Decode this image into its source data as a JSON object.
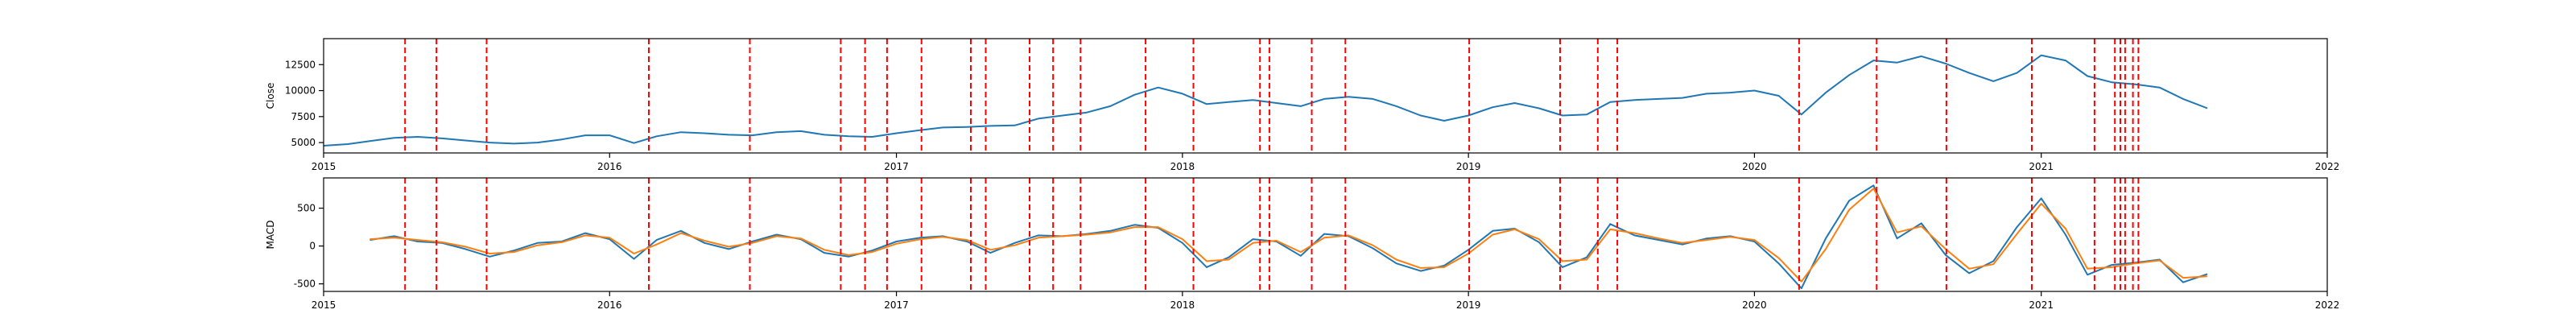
{
  "chart_data": [
    {
      "type": "line",
      "ylabel": "Close",
      "xlim": [
        "2015-01-01",
        "2022-01-01"
      ],
      "ylim": [
        4000,
        15000
      ],
      "x_ticks": [
        "2015",
        "2016",
        "2017",
        "2018",
        "2019",
        "2020",
        "2021",
        "2022"
      ],
      "y_ticks": [
        5000,
        7500,
        10000,
        12500
      ],
      "grid": false,
      "series": [
        {
          "color": "#1f77b4",
          "points": [
            [
              "2015-01-01",
              4700
            ],
            [
              "2015-02-01",
              4850
            ],
            [
              "2015-03-01",
              5150
            ],
            [
              "2015-04-01",
              5450
            ],
            [
              "2015-05-01",
              5550
            ],
            [
              "2015-06-01",
              5400
            ],
            [
              "2015-07-01",
              5200
            ],
            [
              "2015-08-01",
              5000
            ],
            [
              "2015-09-01",
              4900
            ],
            [
              "2015-10-01",
              5000
            ],
            [
              "2015-11-01",
              5300
            ],
            [
              "2015-12-01",
              5700
            ],
            [
              "2016-01-01",
              5700
            ],
            [
              "2016-02-01",
              4950
            ],
            [
              "2016-03-01",
              5600
            ],
            [
              "2016-04-01",
              6000
            ],
            [
              "2016-05-01",
              5900
            ],
            [
              "2016-06-01",
              5750
            ],
            [
              "2016-07-01",
              5700
            ],
            [
              "2016-08-01",
              6000
            ],
            [
              "2016-09-01",
              6100
            ],
            [
              "2016-10-01",
              5750
            ],
            [
              "2016-11-01",
              5600
            ],
            [
              "2016-12-01",
              5550
            ],
            [
              "2017-01-01",
              5900
            ],
            [
              "2017-02-01",
              6200
            ],
            [
              "2017-03-01",
              6450
            ],
            [
              "2017-04-01",
              6500
            ],
            [
              "2017-05-01",
              6600
            ],
            [
              "2017-06-01",
              6650
            ],
            [
              "2017-07-01",
              7300
            ],
            [
              "2017-08-01",
              7600
            ],
            [
              "2017-09-01",
              7900
            ],
            [
              "2017-10-01",
              8500
            ],
            [
              "2017-11-01",
              9600
            ],
            [
              "2017-12-01",
              10300
            ],
            [
              "2018-01-01",
              9700
            ],
            [
              "2018-02-01",
              8700
            ],
            [
              "2018-03-01",
              8900
            ],
            [
              "2018-04-01",
              9100
            ],
            [
              "2018-05-01",
              8800
            ],
            [
              "2018-06-01",
              8500
            ],
            [
              "2018-07-01",
              9200
            ],
            [
              "2018-08-01",
              9400
            ],
            [
              "2018-09-01",
              9200
            ],
            [
              "2018-10-01",
              8500
            ],
            [
              "2018-11-01",
              7600
            ],
            [
              "2018-12-01",
              7100
            ],
            [
              "2019-01-01",
              7600
            ],
            [
              "2019-02-01",
              8400
            ],
            [
              "2019-03-01",
              8800
            ],
            [
              "2019-04-01",
              8300
            ],
            [
              "2019-05-01",
              7600
            ],
            [
              "2019-06-01",
              7700
            ],
            [
              "2019-07-01",
              8900
            ],
            [
              "2019-08-01",
              9100
            ],
            [
              "2019-09-01",
              9200
            ],
            [
              "2019-10-01",
              9300
            ],
            [
              "2019-11-01",
              9700
            ],
            [
              "2019-12-01",
              9800
            ],
            [
              "2020-01-01",
              10000
            ],
            [
              "2020-02-01",
              9500
            ],
            [
              "2020-03-01",
              7700
            ],
            [
              "2020-04-01",
              9800
            ],
            [
              "2020-05-01",
              11500
            ],
            [
              "2020-06-01",
              12900
            ],
            [
              "2020-07-01",
              12700
            ],
            [
              "2020-08-01",
              13300
            ],
            [
              "2020-09-01",
              12600
            ],
            [
              "2020-10-01",
              11700
            ],
            [
              "2020-11-01",
              10900
            ],
            [
              "2020-12-01",
              11700
            ],
            [
              "2021-01-01",
              13400
            ],
            [
              "2021-02-01",
              12900
            ],
            [
              "2021-03-01",
              11400
            ],
            [
              "2021-04-01",
              10800
            ],
            [
              "2021-05-01",
              10600
            ],
            [
              "2021-06-01",
              10300
            ],
            [
              "2021-07-01",
              9200
            ],
            [
              "2021-08-01",
              8300
            ]
          ]
        }
      ]
    },
    {
      "type": "line",
      "ylabel": "MACD",
      "xlim": [
        "2015-01-01",
        "2022-01-01"
      ],
      "ylim": [
        -600,
        900
      ],
      "x_ticks": [
        "2015",
        "2016",
        "2017",
        "2018",
        "2019",
        "2020",
        "2021",
        "2022"
      ],
      "y_ticks": [
        -500,
        0,
        500
      ],
      "grid": false,
      "series": [
        {
          "color": "#1f77b4",
          "points": [
            [
              "2015-03-01",
              80
            ],
            [
              "2015-04-01",
              130
            ],
            [
              "2015-05-01",
              60
            ],
            [
              "2015-06-01",
              40
            ],
            [
              "2015-07-01",
              -40
            ],
            [
              "2015-08-01",
              -140
            ],
            [
              "2015-09-01",
              -60
            ],
            [
              "2015-10-01",
              40
            ],
            [
              "2015-11-01",
              60
            ],
            [
              "2015-12-01",
              170
            ],
            [
              "2016-01-01",
              90
            ],
            [
              "2016-02-01",
              -170
            ],
            [
              "2016-03-01",
              80
            ],
            [
              "2016-04-01",
              200
            ],
            [
              "2016-05-01",
              40
            ],
            [
              "2016-06-01",
              -40
            ],
            [
              "2016-07-01",
              60
            ],
            [
              "2016-08-01",
              150
            ],
            [
              "2016-09-01",
              90
            ],
            [
              "2016-10-01",
              -90
            ],
            [
              "2016-11-01",
              -140
            ],
            [
              "2016-12-01",
              -60
            ],
            [
              "2017-01-01",
              60
            ],
            [
              "2017-02-01",
              110
            ],
            [
              "2017-03-01",
              130
            ],
            [
              "2017-04-01",
              60
            ],
            [
              "2017-05-01",
              -90
            ],
            [
              "2017-06-01",
              40
            ],
            [
              "2017-07-01",
              140
            ],
            [
              "2017-08-01",
              130
            ],
            [
              "2017-09-01",
              160
            ],
            [
              "2017-10-01",
              200
            ],
            [
              "2017-11-01",
              280
            ],
            [
              "2017-12-01",
              240
            ],
            [
              "2018-01-01",
              40
            ],
            [
              "2018-02-01",
              -280
            ],
            [
              "2018-03-01",
              -150
            ],
            [
              "2018-04-01",
              90
            ],
            [
              "2018-05-01",
              60
            ],
            [
              "2018-06-01",
              -130
            ],
            [
              "2018-07-01",
              160
            ],
            [
              "2018-08-01",
              130
            ],
            [
              "2018-09-01",
              -30
            ],
            [
              "2018-10-01",
              -230
            ],
            [
              "2018-11-01",
              -330
            ],
            [
              "2018-12-01",
              -260
            ],
            [
              "2019-01-01",
              -50
            ],
            [
              "2019-02-01",
              200
            ],
            [
              "2019-03-01",
              230
            ],
            [
              "2019-04-01",
              50
            ],
            [
              "2019-05-01",
              -280
            ],
            [
              "2019-06-01",
              -150
            ],
            [
              "2019-07-01",
              290
            ],
            [
              "2019-08-01",
              140
            ],
            [
              "2019-09-01",
              80
            ],
            [
              "2019-10-01",
              20
            ],
            [
              "2019-11-01",
              100
            ],
            [
              "2019-12-01",
              130
            ],
            [
              "2020-01-01",
              60
            ],
            [
              "2020-02-01",
              -230
            ],
            [
              "2020-03-01",
              -560
            ],
            [
              "2020-04-01",
              100
            ],
            [
              "2020-05-01",
              600
            ],
            [
              "2020-06-01",
              800
            ],
            [
              "2020-07-01",
              100
            ],
            [
              "2020-08-01",
              300
            ],
            [
              "2020-09-01",
              -120
            ],
            [
              "2020-10-01",
              -360
            ],
            [
              "2020-11-01",
              -200
            ],
            [
              "2020-12-01",
              250
            ],
            [
              "2021-01-01",
              630
            ],
            [
              "2021-02-01",
              150
            ],
            [
              "2021-03-01",
              -380
            ],
            [
              "2021-04-01",
              -250
            ],
            [
              "2021-05-01",
              -220
            ],
            [
              "2021-06-01",
              -180
            ],
            [
              "2021-07-01",
              -480
            ],
            [
              "2021-08-01",
              -370
            ]
          ]
        },
        {
          "color": "#ff7f0e",
          "points": [
            [
              "2015-03-01",
              90
            ],
            [
              "2015-04-01",
              110
            ],
            [
              "2015-05-01",
              80
            ],
            [
              "2015-06-01",
              50
            ],
            [
              "2015-07-01",
              -10
            ],
            [
              "2015-08-01",
              -100
            ],
            [
              "2015-09-01",
              -80
            ],
            [
              "2015-10-01",
              10
            ],
            [
              "2015-11-01",
              50
            ],
            [
              "2015-12-01",
              140
            ],
            [
              "2016-01-01",
              110
            ],
            [
              "2016-02-01",
              -100
            ],
            [
              "2016-03-01",
              20
            ],
            [
              "2016-04-01",
              170
            ],
            [
              "2016-05-01",
              70
            ],
            [
              "2016-06-01",
              -10
            ],
            [
              "2016-07-01",
              40
            ],
            [
              "2016-08-01",
              130
            ],
            [
              "2016-09-01",
              100
            ],
            [
              "2016-10-01",
              -50
            ],
            [
              "2016-11-01",
              -120
            ],
            [
              "2016-12-01",
              -80
            ],
            [
              "2017-01-01",
              30
            ],
            [
              "2017-02-01",
              90
            ],
            [
              "2017-03-01",
              120
            ],
            [
              "2017-04-01",
              80
            ],
            [
              "2017-05-01",
              -50
            ],
            [
              "2017-06-01",
              10
            ],
            [
              "2017-07-01",
              110
            ],
            [
              "2017-08-01",
              130
            ],
            [
              "2017-09-01",
              150
            ],
            [
              "2017-10-01",
              180
            ],
            [
              "2017-11-01",
              250
            ],
            [
              "2017-12-01",
              250
            ],
            [
              "2018-01-01",
              90
            ],
            [
              "2018-02-01",
              -200
            ],
            [
              "2018-03-01",
              -180
            ],
            [
              "2018-04-01",
              40
            ],
            [
              "2018-05-01",
              70
            ],
            [
              "2018-06-01",
              -80
            ],
            [
              "2018-07-01",
              110
            ],
            [
              "2018-08-01",
              140
            ],
            [
              "2018-09-01",
              10
            ],
            [
              "2018-10-01",
              -180
            ],
            [
              "2018-11-01",
              -290
            ],
            [
              "2018-12-01",
              -280
            ],
            [
              "2019-01-01",
              -100
            ],
            [
              "2019-02-01",
              150
            ],
            [
              "2019-03-01",
              220
            ],
            [
              "2019-04-01",
              90
            ],
            [
              "2019-05-01",
              -200
            ],
            [
              "2019-06-01",
              -180
            ],
            [
              "2019-07-01",
              220
            ],
            [
              "2019-08-01",
              170
            ],
            [
              "2019-09-01",
              100
            ],
            [
              "2019-10-01",
              40
            ],
            [
              "2019-11-01",
              80
            ],
            [
              "2019-12-01",
              120
            ],
            [
              "2020-01-01",
              80
            ],
            [
              "2020-02-01",
              -160
            ],
            [
              "2020-03-01",
              -470
            ],
            [
              "2020-04-01",
              -40
            ],
            [
              "2020-05-01",
              480
            ],
            [
              "2020-06-01",
              760
            ],
            [
              "2020-07-01",
              180
            ],
            [
              "2020-08-01",
              260
            ],
            [
              "2020-09-01",
              -40
            ],
            [
              "2020-10-01",
              -300
            ],
            [
              "2020-11-01",
              -240
            ],
            [
              "2020-12-01",
              160
            ],
            [
              "2021-01-01",
              560
            ],
            [
              "2021-02-01",
              230
            ],
            [
              "2021-03-01",
              -300
            ],
            [
              "2021-04-01",
              -280
            ],
            [
              "2021-05-01",
              -230
            ],
            [
              "2021-06-01",
              -190
            ],
            [
              "2021-07-01",
              -420
            ],
            [
              "2021-08-01",
              -400
            ]
          ]
        }
      ]
    }
  ],
  "markers": {
    "color": "#ff0000",
    "dates": [
      "2015-04-15",
      "2015-05-25",
      "2015-07-28",
      "2016-02-20",
      "2016-06-28",
      "2016-10-22",
      "2016-11-22",
      "2016-12-20",
      "2017-02-02",
      "2017-04-06",
      "2017-04-25",
      "2017-06-20",
      "2017-07-20",
      "2017-08-24",
      "2017-11-15",
      "2018-01-15",
      "2018-04-10",
      "2018-04-22",
      "2018-06-15",
      "2018-07-28",
      "2019-01-02",
      "2019-04-28",
      "2019-06-15",
      "2019-07-10",
      "2020-02-27",
      "2020-06-05",
      "2020-09-02",
      "2020-12-20",
      "2021-03-10",
      "2021-04-05",
      "2021-04-12",
      "2021-04-18",
      "2021-04-28",
      "2021-05-05"
    ]
  }
}
